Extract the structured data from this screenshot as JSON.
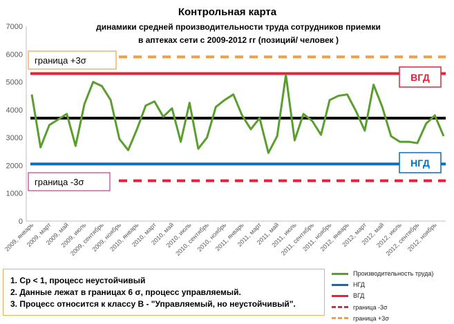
{
  "chart_data": {
    "type": "line",
    "title": "Контрольная карта",
    "subtitle_line1": "динамики   средней производительности труда сотрудников приемки",
    "subtitle_line2": "в аптеках  сети   с 2009-2012 гг (позиций/ человек )",
    "ylim": [
      0,
      7000
    ],
    "yticks": [
      "0",
      "1000",
      "2000",
      "3000",
      "4000",
      "5000",
      "6000",
      "7000"
    ],
    "x_tick_labels": [
      "2009, январь",
      "2009, март",
      "2009, май",
      "2009, июль",
      "2009, сентябрь",
      "2009, ноябрь",
      "2010, январь",
      "2010, март",
      "2010, май",
      "2010, июль",
      "2010, сентябрь",
      "2010, ноябрь",
      "2011, январь",
      "2011, март",
      "2011, май",
      "2011, июль",
      "2011, сентябрь",
      "2011, ноябрь",
      "2012, январь",
      "2012, март",
      "2012, май",
      "2012, июль",
      "2012, сентябрь",
      "2012, ноябрь"
    ],
    "series": [
      {
        "name": "Производительность труда)",
        "color": "#5a9e2e",
        "values": [
          4550,
          2650,
          3450,
          3650,
          3850,
          2700,
          4200,
          5000,
          4850,
          4350,
          2950,
          2550,
          3300,
          4150,
          4300,
          3750,
          4050,
          2850,
          4250,
          2600,
          3000,
          4100,
          4350,
          4550,
          3800,
          3300,
          3700,
          2450,
          3050,
          5250,
          2900,
          3850,
          3600,
          3100,
          4350,
          4500,
          4550,
          3950,
          3250,
          4900,
          4100,
          3050,
          2850,
          2850,
          2800,
          3500,
          3800,
          3050
        ]
      }
    ],
    "center_line": {
      "value": 3700,
      "color": "#000000"
    },
    "ngd": {
      "name": "НГД",
      "value": 2050,
      "color": "#0070c0",
      "label": "НГД"
    },
    "vgd": {
      "name": "ВГД",
      "value": 5300,
      "color": "#e8213a",
      "label": "ВГД"
    },
    "lower_3sigma": {
      "name": "граница -3σ",
      "value": 1450,
      "color": "#e8213a",
      "label": "граница -3σ"
    },
    "upper_3sigma": {
      "name": "граница +3σ",
      "value": 5900,
      "color": "#f0a040",
      "label": "граница +3σ"
    },
    "notes": [
      "1. Ср < 1, процесс неустойчивый",
      "2. Данные лежат в границах 6 σ, процесс управляемый.",
      "3. Процесс относится к классу В - \"Управляемый, но неустойчивый\"."
    ],
    "legend": [
      {
        "label": "Производительность труда)",
        "color": "#5a9e2e",
        "dashed": false
      },
      {
        "label": "НГД",
        "color": "#0070c0",
        "dashed": false
      },
      {
        "label": "ВГД",
        "color": "#e8213a",
        "dashed": false
      },
      {
        "label": "граница -3σ",
        "color": "#e8213a",
        "dashed": true
      },
      {
        "label": "граница +3σ",
        "color": "#f0a040",
        "dashed": true
      }
    ]
  }
}
